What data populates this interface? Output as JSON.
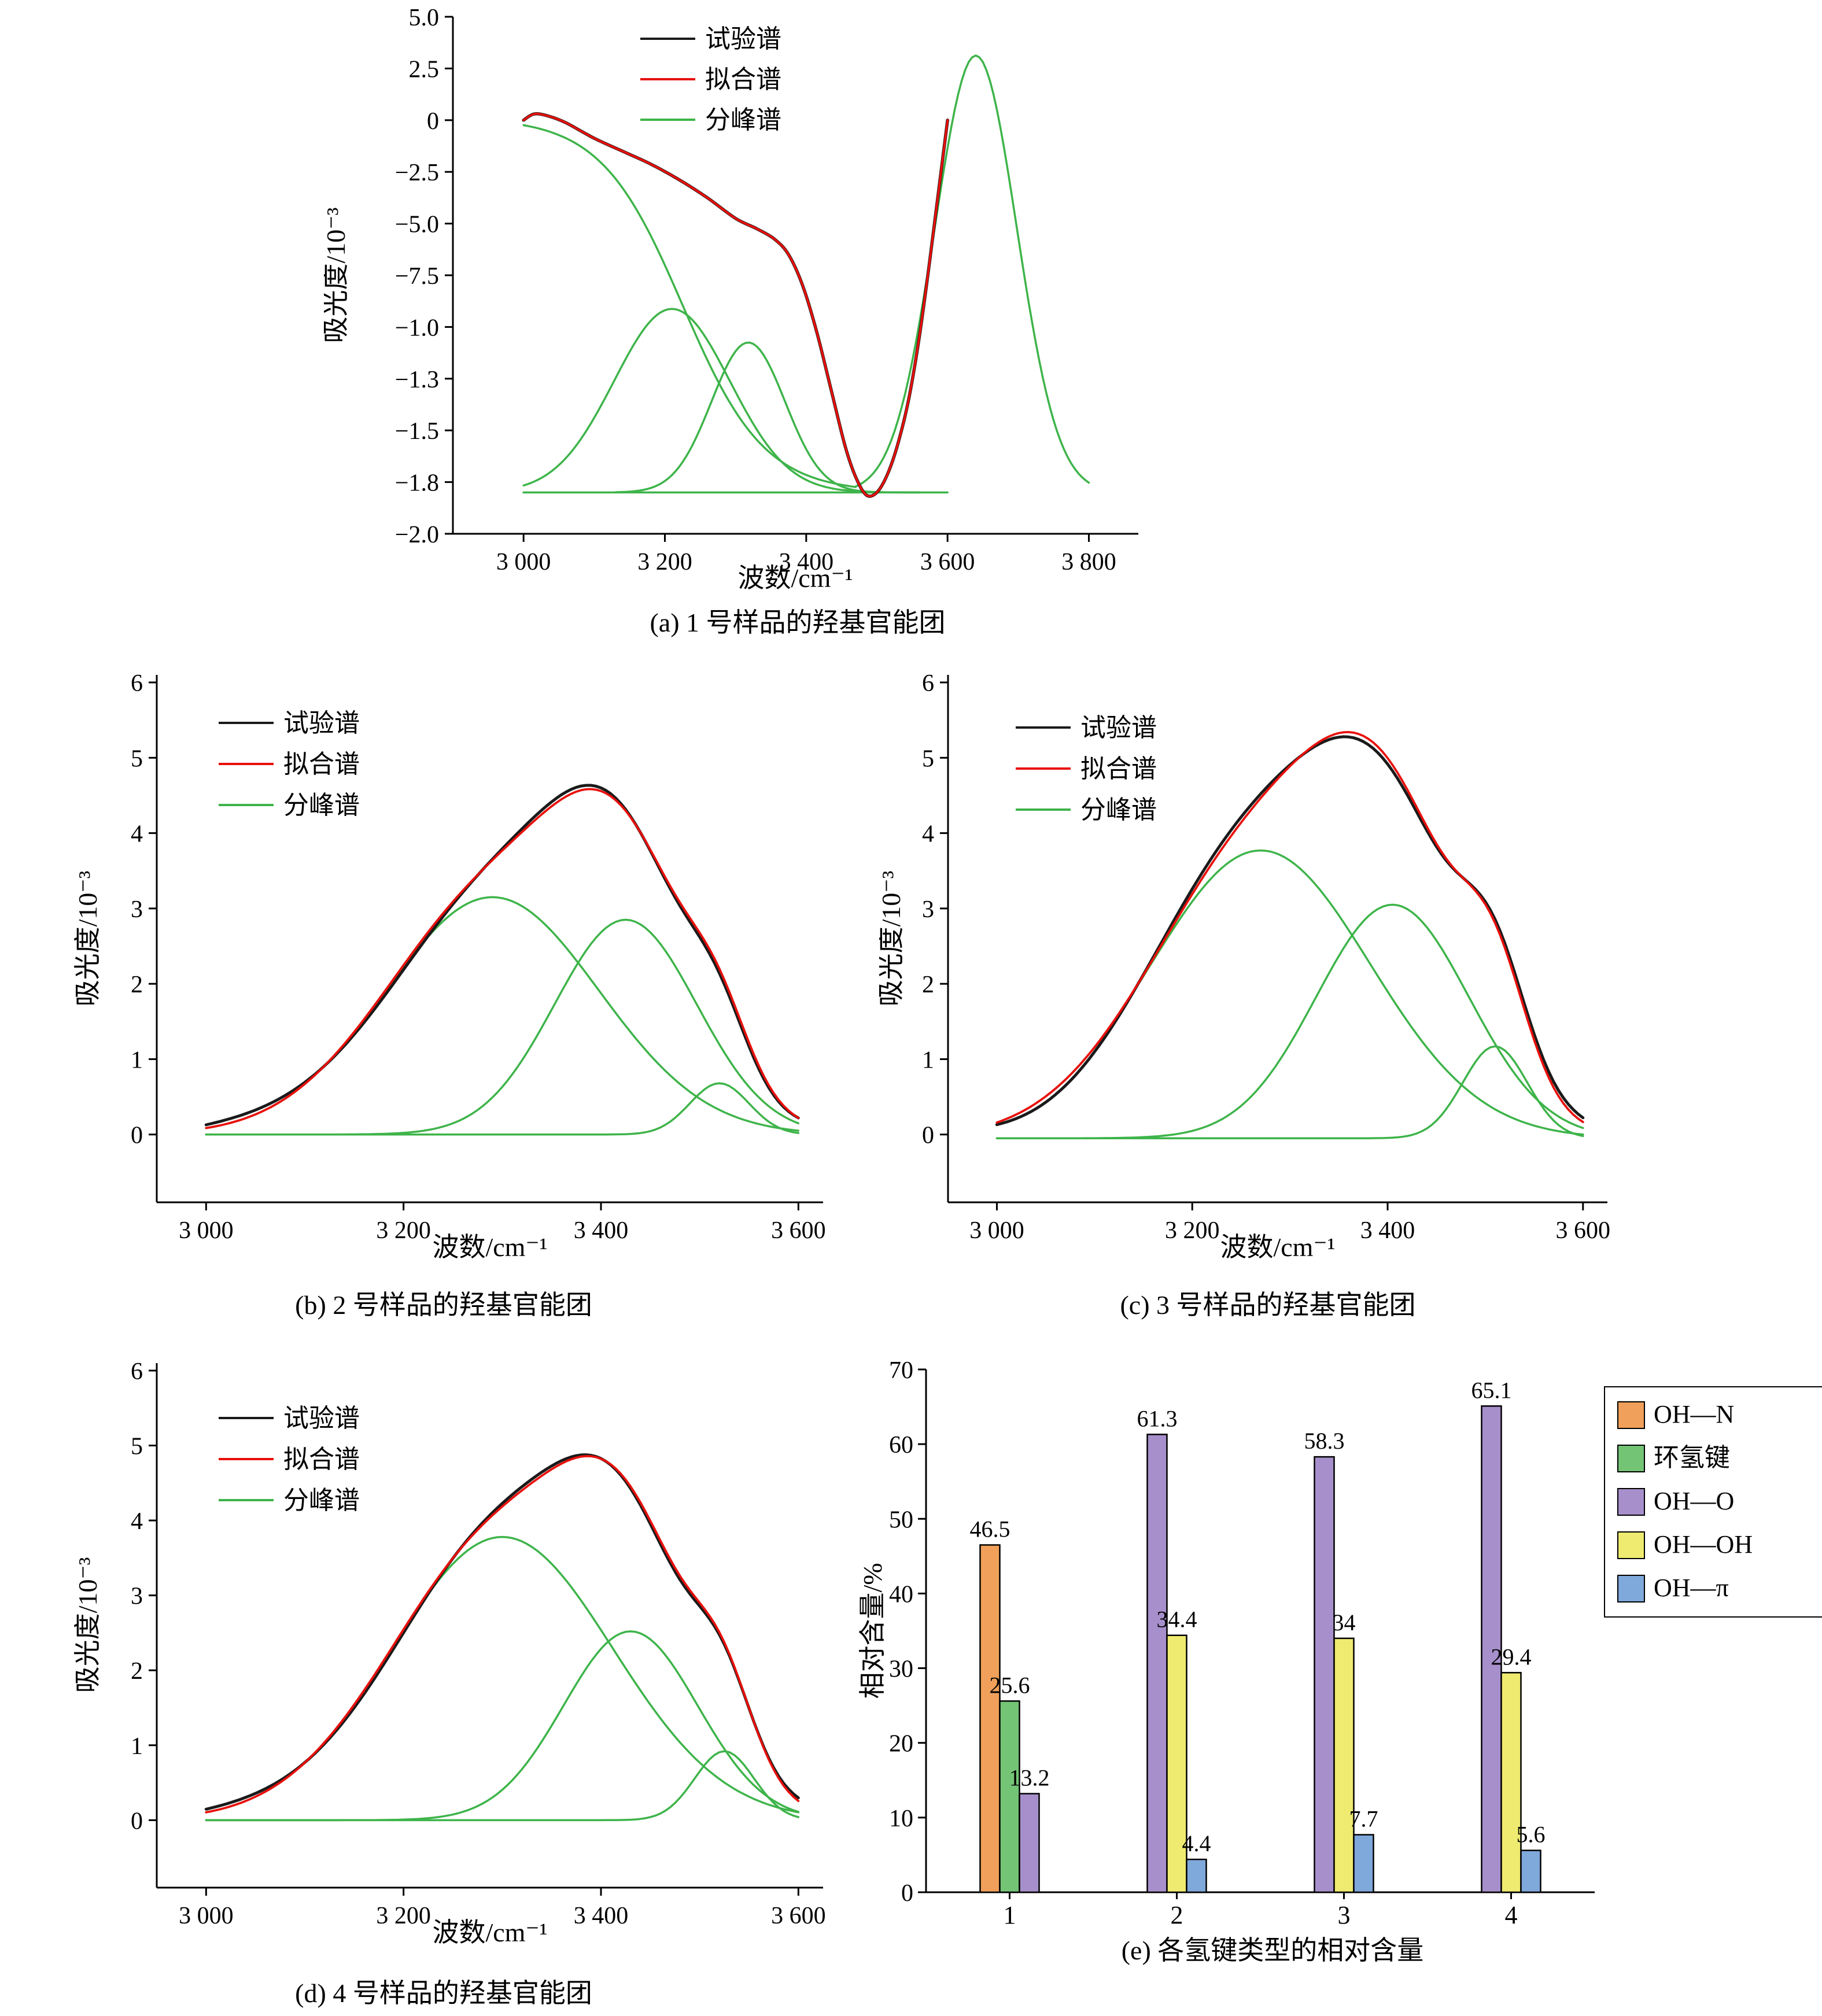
{
  "figure": {
    "background": "#ffffff"
  },
  "colors": {
    "experimental": "#1a1a1a",
    "fit": "#e8100c",
    "component": "#3eb44a",
    "axis": "#000000",
    "bar_series": {
      "OH—N": "#f0a05a",
      "环氢键": "#74c476",
      "OH—O": "#a78fcb",
      "OH—OH": "#eeeb70",
      "OH—π": "#7fa8db"
    }
  },
  "chart_data": [
    {
      "id": "a",
      "type": "line",
      "caption": "(a) 1 号样品的羟基官能团",
      "xlabel": "波数/cm⁻¹",
      "ylabel": "吸光度/10⁻³",
      "legend_labels": [
        "试验谱",
        "拟合谱",
        "分峰谱"
      ],
      "x_axis": {
        "range": [
          2900,
          3870
        ],
        "tick_values": [
          3000,
          3200,
          3400,
          3600,
          3800
        ],
        "tick_labels": [
          "3 000",
          "3 200",
          "3 400",
          "3 600",
          "3 800"
        ]
      },
      "y_axis": {
        "mode": "tick-space",
        "tick_labels": [
          "5.0",
          "2.5",
          "0",
          "−2.5",
          "−5.0",
          "−7.5",
          "−1.0",
          "−1.3",
          "−1.5",
          "−1.8",
          "−2.0"
        ]
      },
      "baseline_tick": 9.2,
      "fit_offset": 0,
      "experimental_points": [
        [
          3000,
          2.0
        ],
        [
          3015,
          1.88
        ],
        [
          3035,
          1.92
        ],
        [
          3060,
          2.05
        ],
        [
          3100,
          2.35
        ],
        [
          3140,
          2.6
        ],
        [
          3180,
          2.85
        ],
        [
          3220,
          3.15
        ],
        [
          3260,
          3.5
        ],
        [
          3300,
          3.9
        ],
        [
          3330,
          4.1
        ],
        [
          3355,
          4.3
        ],
        [
          3375,
          4.6
        ],
        [
          3395,
          5.2
        ],
        [
          3415,
          6.1
        ],
        [
          3435,
          7.2
        ],
        [
          3455,
          8.3
        ],
        [
          3470,
          8.9
        ],
        [
          3485,
          9.25
        ],
        [
          3500,
          9.2
        ],
        [
          3515,
          8.85
        ],
        [
          3530,
          8.25
        ],
        [
          3545,
          7.4
        ],
        [
          3560,
          6.2
        ],
        [
          3575,
          4.7
        ],
        [
          3588,
          3.3
        ],
        [
          3600,
          2.0
        ]
      ],
      "components": [
        {
          "kind": "logistic",
          "y_start": 1.95,
          "y_end": 9.2,
          "center": 3225,
          "width": 58,
          "range": [
            3000,
            3470
          ]
        },
        {
          "kind": "gaussian",
          "center": 3210,
          "height": 3.55,
          "sigma": 82,
          "range": [
            3000,
            3560
          ]
        },
        {
          "kind": "gaussian",
          "center": 3318,
          "height": 2.9,
          "sigma": 52,
          "range": [
            3130,
            3560
          ]
        },
        {
          "kind": "gaussian",
          "center": 3640,
          "height": 8.45,
          "sigma": 58,
          "range": [
            3470,
            3800
          ]
        },
        {
          "kind": "flat",
          "range": [
            3000,
            3600
          ]
        }
      ]
    },
    {
      "id": "b",
      "type": "line",
      "caption": "(b) 2 号样品的羟基官能团",
      "xlabel": "波数/cm⁻¹",
      "ylabel": "吸光度/10⁻³",
      "legend_labels": [
        "试验谱",
        "拟合谱",
        "分峰谱"
      ],
      "x_axis": {
        "range": [
          2950,
          3625
        ],
        "tick_values": [
          3000,
          3200,
          3400,
          3600
        ],
        "tick_labels": [
          "3 000",
          "3 200",
          "3 400",
          "3 600"
        ]
      },
      "y_axis": {
        "mode": "linear",
        "range": [
          -0.9,
          6.1
        ],
        "tick_values": [
          0,
          1,
          2,
          3,
          4,
          5,
          6
        ],
        "tick_labels": [
          "0",
          "1",
          "2",
          "3",
          "4",
          "5",
          "6"
        ]
      },
      "baseline": 0,
      "peaks": [
        {
          "center": 3290,
          "height": 3.15,
          "sigma": 108
        },
        {
          "center": 3425,
          "height": 2.85,
          "sigma": 72
        },
        {
          "center": 3520,
          "height": 0.68,
          "sigma": 30
        }
      ],
      "experimental_wiggle": {
        "amplitude": 0.06,
        "period": 320,
        "phase": 0.8
      }
    },
    {
      "id": "c",
      "type": "line",
      "caption": "(c) 3 号样品的羟基官能团",
      "xlabel": "波数/cm⁻¹",
      "ylabel": "吸光度/10⁻³",
      "legend_labels": [
        "试验谱",
        "拟合谱",
        "分峰谱"
      ],
      "x_axis": {
        "range": [
          2950,
          3625
        ],
        "tick_values": [
          3000,
          3200,
          3400,
          3600
        ],
        "tick_labels": [
          "3 000",
          "3 200",
          "3 400",
          "3 600"
        ]
      },
      "y_axis": {
        "mode": "linear",
        "range": [
          -0.9,
          6.1
        ],
        "tick_values": [
          0,
          1,
          2,
          3,
          4,
          5,
          6
        ],
        "tick_labels": [
          "0",
          "1",
          "2",
          "3",
          "4",
          "5",
          "6"
        ]
      },
      "baseline": -0.05,
      "peaks": [
        {
          "center": 3270,
          "height": 3.82,
          "sigma": 112
        },
        {
          "center": 3405,
          "height": 3.1,
          "sigma": 78
        },
        {
          "center": 3510,
          "height": 1.22,
          "sigma": 33
        }
      ],
      "experimental_wiggle": {
        "amplitude": 0.08,
        "period": 330,
        "phase": 3.5
      }
    },
    {
      "id": "d",
      "type": "line",
      "caption": "(d) 4 号样品的羟基官能团",
      "xlabel": "波数/cm⁻¹",
      "ylabel": "吸光度/10⁻³",
      "legend_labels": [
        "试验谱",
        "拟合谱",
        "分峰谱"
      ],
      "x_axis": {
        "range": [
          2950,
          3625
        ],
        "tick_values": [
          3000,
          3200,
          3400,
          3600
        ],
        "tick_labels": [
          "3 000",
          "3 200",
          "3 400",
          "3 600"
        ]
      },
      "y_axis": {
        "mode": "linear",
        "range": [
          -0.9,
          6.1
        ],
        "tick_values": [
          0,
          1,
          2,
          3,
          4,
          5,
          6
        ],
        "tick_labels": [
          "0",
          "1",
          "2",
          "3",
          "4",
          "5",
          "6"
        ]
      },
      "baseline": 0,
      "peaks": [
        {
          "center": 3300,
          "height": 3.78,
          "sigma": 112
        },
        {
          "center": 3430,
          "height": 2.52,
          "sigma": 68
        },
        {
          "center": 3525,
          "height": 0.92,
          "sigma": 30
        }
      ],
      "experimental_wiggle": {
        "amplitude": 0.05,
        "period": 300,
        "phase": 1.0
      }
    },
    {
      "id": "e",
      "type": "bar",
      "caption": "(e) 各氢键类型的相对含量",
      "ylabel": "相对含量/%",
      "x_axis": {
        "categories": [
          "1",
          "2",
          "3",
          "4"
        ]
      },
      "y_axis": {
        "range": [
          0,
          70
        ],
        "tick_values": [
          0,
          10,
          20,
          30,
          40,
          50,
          60,
          70
        ],
        "tick_labels": [
          "0",
          "10",
          "20",
          "30",
          "40",
          "50",
          "60",
          "70"
        ]
      },
      "legend_entries": [
        "OH—N",
        "环氢键",
        "OH—O",
        "OH—OH",
        "OH—π"
      ],
      "groups": [
        {
          "category": "1",
          "bars": [
            {
              "series": "OH—N",
              "value": 46.5,
              "label": "46.5"
            },
            {
              "series": "环氢键",
              "value": 25.6,
              "label": "25.6"
            },
            {
              "series": "OH—O",
              "value": 13.2,
              "label": "13.2"
            }
          ]
        },
        {
          "category": "2",
          "bars": [
            {
              "series": "OH—O",
              "value": 61.3,
              "label": "61.3"
            },
            {
              "series": "OH—OH",
              "value": 34.4,
              "label": "34.4"
            },
            {
              "series": "OH—π",
              "value": 4.4,
              "label": "4.4"
            }
          ]
        },
        {
          "category": "3",
          "bars": [
            {
              "series": "OH—O",
              "value": 58.3,
              "label": "58.3"
            },
            {
              "series": "OH—OH",
              "value": 34,
              "label": "34"
            },
            {
              "series": "OH—π",
              "value": 7.7,
              "label": "7.7"
            }
          ]
        },
        {
          "category": "4",
          "bars": [
            {
              "series": "OH—O",
              "value": 65.1,
              "label": "65.1"
            },
            {
              "series": "OH—OH",
              "value": 29.4,
              "label": "29.4"
            },
            {
              "series": "OH—π",
              "value": 5.6,
              "label": "5.6"
            }
          ]
        }
      ]
    }
  ]
}
